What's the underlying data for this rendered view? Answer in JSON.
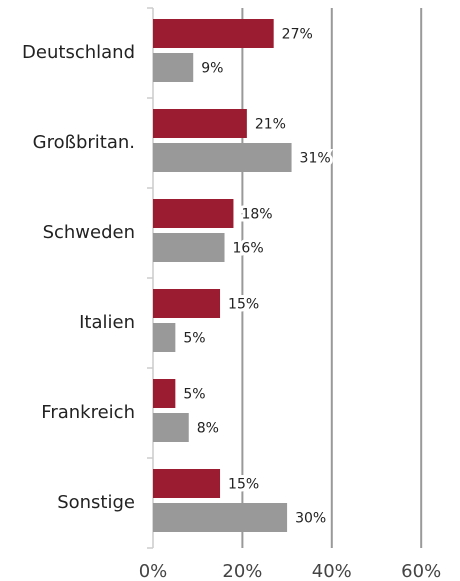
{
  "chart_data": {
    "type": "hbar",
    "categories": [
      "Deutschland",
      "Großbritan.",
      "Schweden",
      "Italien",
      "Frankreich",
      "Sonstige"
    ],
    "series": [
      {
        "color": "#9b1c31",
        "values": [
          27,
          21,
          18,
          15,
          5,
          15
        ],
        "value_labels": [
          "27%",
          "21%",
          "18%",
          "15%",
          "5%",
          "15%"
        ]
      },
      {
        "color": "#999999",
        "values": [
          9,
          31,
          16,
          5,
          8,
          30
        ],
        "value_labels": [
          "9%",
          "31%",
          "16%",
          "5%",
          "8%",
          "30%"
        ]
      }
    ],
    "xlim": [
      0,
      66
    ],
    "xticks": [
      {
        "value": 0,
        "label": "0%"
      },
      {
        "value": 20,
        "label": "20%"
      },
      {
        "value": 40,
        "label": "40%"
      },
      {
        "value": 60,
        "label": "60%"
      }
    ],
    "grid": true
  }
}
